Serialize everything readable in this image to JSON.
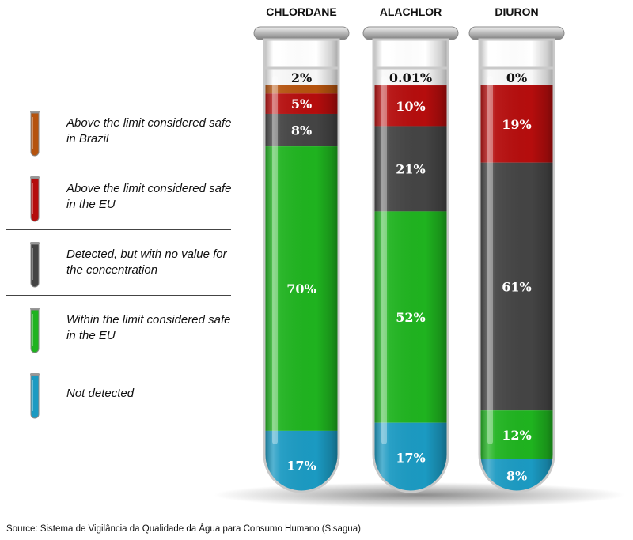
{
  "legend": [
    {
      "key": "brazil",
      "label": "Above the limit considered safe in Brazil",
      "color": "#b5530e"
    },
    {
      "key": "eu_above",
      "label": "Above the limit considered safe in the EU",
      "color": "#b50d0d"
    },
    {
      "key": "no_value",
      "label": "Detected, but with no value for the concentration",
      "color": "#444444"
    },
    {
      "key": "eu_within",
      "label": "Within the limit considered safe in the EU",
      "color": "#1fb31f"
    },
    {
      "key": "not_detected",
      "label": "Not detected",
      "color": "#1b9ac2"
    }
  ],
  "chart_data": {
    "type": "bar",
    "stacked": true,
    "categories": [
      "CHLORDANE",
      "ALACHLOR",
      "DIURON"
    ],
    "series": [
      {
        "name": "Above the limit considered safe in Brazil",
        "values": [
          2,
          0.01,
          0
        ],
        "labels": [
          "2%",
          "0.01%",
          "0%"
        ],
        "color": "#b5530e"
      },
      {
        "name": "Above the limit considered safe in the EU",
        "values": [
          5,
          10,
          19
        ],
        "labels": [
          "5%",
          "10%",
          "19%"
        ],
        "color": "#b50d0d"
      },
      {
        "name": "Detected, but with no value for the concentration",
        "values": [
          8,
          21,
          61
        ],
        "labels": [
          "8%",
          "21%",
          "61%"
        ],
        "color": "#444444"
      },
      {
        "name": "Within the limit considered safe in the EU",
        "values": [
          70,
          52,
          12
        ],
        "labels": [
          "70%",
          "52%",
          "12%"
        ],
        "color": "#1fb31f"
      },
      {
        "name": "Not detected",
        "values": [
          17,
          17,
          8
        ],
        "labels": [
          "17%",
          "17%",
          "8%"
        ],
        "color": "#1b9ac2"
      }
    ]
  },
  "source": "Source: Sistema de Vigilância da Qualidade da Água para Consumo Humano (Sisagua)"
}
